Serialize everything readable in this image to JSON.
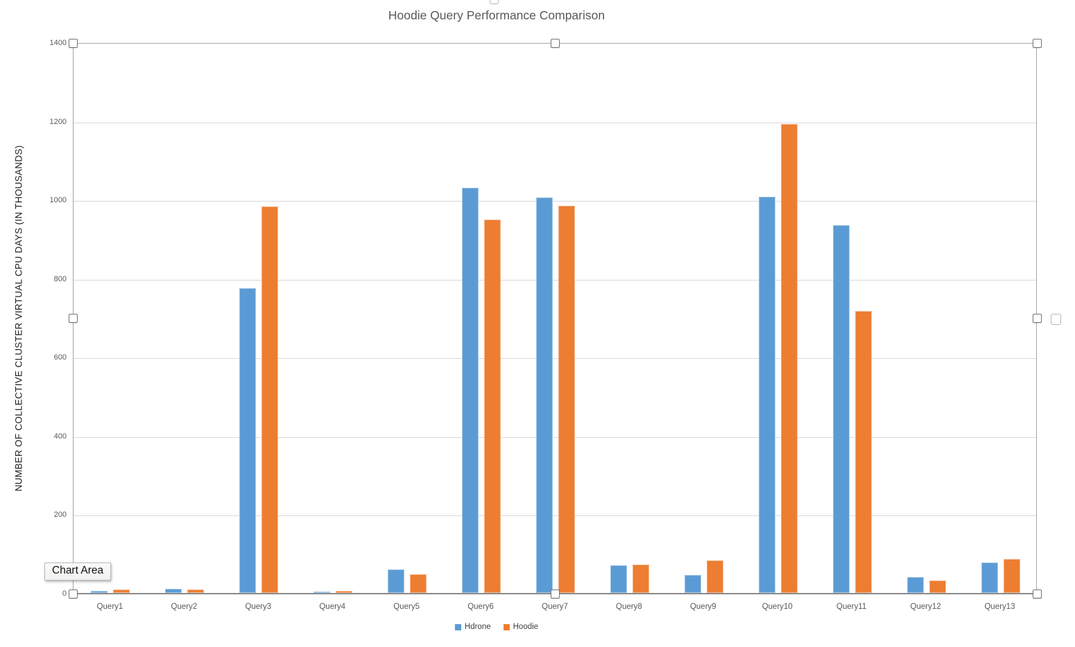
{
  "chart": {
    "title": "Hoodie Query Performance Comparison",
    "ylabel": "NUMBER OF COLLECTIVE CLUSTER VIRTUAL CPU DAYS (IN THOUSANDS)"
  },
  "tooltip": {
    "label": "Chart Area"
  },
  "chart_data": {
    "type": "bar",
    "title": "Hoodie Query Performance Comparison",
    "xlabel": "",
    "ylabel": "NUMBER OF COLLECTIVE CLUSTER VIRTUAL CPU DAYS (IN THOUSANDS)",
    "categories": [
      "Query1",
      "Query2",
      "Query3",
      "Query4",
      "Query5",
      "Query6",
      "Query7",
      "Query8",
      "Query9",
      "Query10",
      "Query11",
      "Query12",
      "Query13"
    ],
    "series": [
      {
        "name": "Hdrone",
        "color": "#5B9BD5",
        "values": [
          5,
          10,
          775,
          4,
          60,
          1030,
          1005,
          70,
          45,
          1008,
          935,
          40,
          78
        ]
      },
      {
        "name": "Hoodie",
        "color": "#ED7D31",
        "values": [
          9,
          9,
          983,
          5,
          48,
          950,
          985,
          72,
          83,
          1193,
          716,
          31,
          87
        ]
      }
    ],
    "ylim": [
      0,
      1400
    ],
    "ytick_step": 200,
    "grid": true,
    "legend_position": "bottom",
    "annotations": [
      "Chart Area"
    ]
  }
}
